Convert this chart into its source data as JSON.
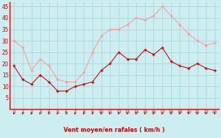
{
  "x": [
    0,
    1,
    2,
    3,
    4,
    5,
    6,
    7,
    8,
    9,
    10,
    11,
    12,
    13,
    14,
    15,
    16,
    17,
    18,
    19,
    20,
    21,
    22,
    23
  ],
  "vent_moyen": [
    19,
    13,
    11,
    15,
    12,
    8,
    8,
    10,
    11,
    12,
    17,
    20,
    25,
    22,
    22,
    26,
    24,
    27,
    21,
    19,
    18,
    20,
    18,
    17
  ],
  "rafales": [
    30,
    27,
    17,
    22,
    19,
    13,
    12,
    12,
    16,
    25,
    32,
    35,
    35,
    37,
    40,
    39,
    41,
    45,
    41,
    37,
    33,
    30,
    28,
    29
  ],
  "bg_color": "#cceef0",
  "grid_color": "#aad8da",
  "line_moyen_color": "#cc0000",
  "line_rafales_color": "#ff9999",
  "xlabel": "Vent moyen/en rafales ( km/h )",
  "xlabel_color": "#cc0000",
  "tick_color": "#cc0000",
  "axis_color": "#888888",
  "ylim": [
    0,
    47
  ],
  "yticks": [
    5,
    10,
    15,
    20,
    25,
    30,
    35,
    40,
    45
  ],
  "arrow_color": "#cc0000",
  "spine_color": "#cc0000"
}
